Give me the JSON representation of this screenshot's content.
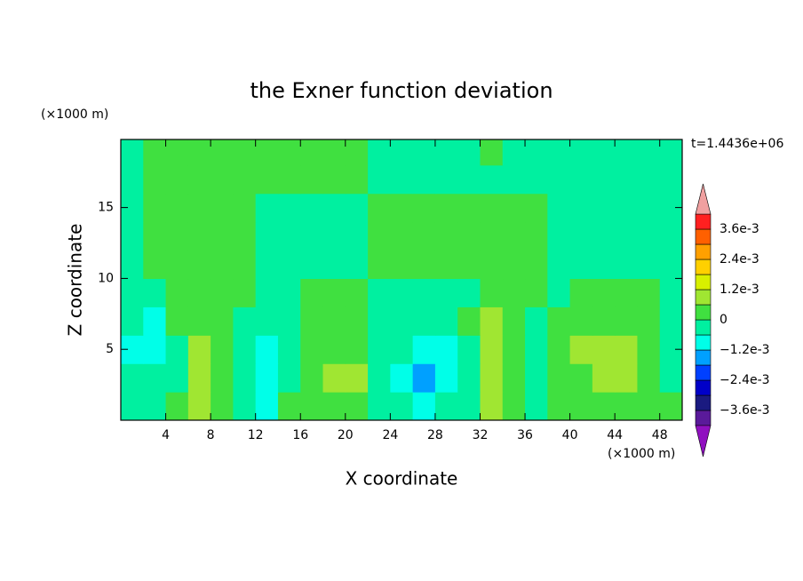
{
  "chart_data": {
    "type": "contour",
    "title": "the Exner function deviation",
    "x_label": "X coordinate",
    "y_label": "Z coordinate",
    "x_unit": "(×1000 m)",
    "y_unit": "(×1000 m)",
    "time_label": "t=1.4436e+06",
    "xlim": [
      0,
      50
    ],
    "ylim": [
      0,
      19.8
    ],
    "xticks": [
      4,
      8,
      12,
      16,
      20,
      24,
      28,
      32,
      36,
      40,
      44,
      48
    ],
    "yticks": [
      5,
      10,
      15
    ],
    "x": [
      1,
      3,
      5,
      7,
      9,
      11,
      13,
      15,
      17,
      19,
      21,
      23,
      25,
      27,
      29,
      31,
      33,
      35,
      37,
      39,
      41,
      43,
      45,
      47,
      49
    ],
    "y": [
      1,
      3,
      5,
      7,
      9,
      11,
      13,
      15,
      17,
      19
    ],
    "z": [
      [
        -0.0003,
        -0.0003,
        0.0003,
        0.0009,
        0.0003,
        -0.0003,
        -0.0009,
        0.0003,
        0.0003,
        0.0003,
        0.0003,
        -0.0003,
        -0.0003,
        -0.0009,
        -0.0003,
        -0.0003,
        0.0009,
        0.0003,
        -0.0003,
        0.0003,
        0.0003,
        0.0003,
        0.0003,
        0.0003,
        0.0003
      ],
      [
        -0.0003,
        -0.0003,
        -0.0003,
        0.0009,
        0.0003,
        -0.0003,
        -0.0009,
        -0.0003,
        0.0003,
        0.0009,
        0.0009,
        -0.0003,
        -0.0009,
        -0.0015,
        -0.0009,
        -0.0003,
        0.0009,
        0.0003,
        -0.0003,
        0.0003,
        0.0003,
        0.0009,
        0.0009,
        0.0003,
        -0.0003
      ],
      [
        -0.0009,
        -0.0009,
        -0.0003,
        0.0009,
        0.0003,
        -0.0003,
        -0.0009,
        -0.0003,
        0.0003,
        0.0003,
        0.0003,
        -0.0003,
        -0.0003,
        -0.0009,
        -0.0009,
        -0.0003,
        0.0009,
        0.0003,
        -0.0003,
        0.0003,
        0.0009,
        0.0009,
        0.0009,
        0.0003,
        -0.0003
      ],
      [
        -0.0003,
        -0.0009,
        0.0003,
        0.0003,
        0.0003,
        -0.0003,
        -0.0003,
        -0.0003,
        0.0003,
        0.0003,
        0.0003,
        -0.0003,
        -0.0003,
        -0.0003,
        -0.0003,
        0.0003,
        0.0009,
        0.0003,
        -0.0003,
        0.0003,
        0.0003,
        0.0003,
        0.0003,
        0.0003,
        -0.0003
      ],
      [
        -0.0003,
        -0.0003,
        0.0003,
        0.0003,
        0.0003,
        0.0003,
        -0.0003,
        -0.0003,
        0.0003,
        0.0003,
        0.0003,
        -0.0003,
        -0.0003,
        -0.0003,
        -0.0003,
        -0.0003,
        0.0003,
        0.0003,
        0.0003,
        -0.0003,
        0.0003,
        0.0003,
        0.0003,
        0.0003,
        -0.0003
      ],
      [
        -0.0003,
        0.0003,
        0.0003,
        0.0003,
        0.0003,
        0.0003,
        -0.0003,
        -0.0003,
        -0.0003,
        -0.0003,
        -0.0003,
        0.0003,
        0.0003,
        0.0003,
        0.0003,
        0.0003,
        0.0003,
        0.0003,
        0.0003,
        -0.0003,
        -0.0003,
        -0.0003,
        -0.0003,
        -0.0003,
        -0.0003
      ],
      [
        -0.0003,
        0.0003,
        0.0003,
        0.0003,
        0.0003,
        0.0003,
        -0.0003,
        -0.0003,
        -0.0003,
        -0.0003,
        -0.0003,
        0.0003,
        0.0003,
        0.0003,
        0.0003,
        0.0003,
        0.0003,
        0.0003,
        0.0003,
        -0.0003,
        -0.0003,
        -0.0003,
        -0.0003,
        -0.0003,
        -0.0003
      ],
      [
        -0.0003,
        0.0003,
        0.0003,
        0.0003,
        0.0003,
        0.0003,
        -0.0003,
        -0.0003,
        -0.0003,
        -0.0003,
        -0.0003,
        0.0003,
        0.0003,
        0.0003,
        0.0003,
        0.0003,
        0.0003,
        0.0003,
        0.0003,
        -0.0003,
        -0.0003,
        -0.0003,
        -0.0003,
        -0.0003,
        -0.0003
      ],
      [
        -0.0003,
        0.0003,
        0.0003,
        0.0003,
        0.0003,
        0.0003,
        0.0003,
        0.0003,
        0.0003,
        0.0003,
        0.0003,
        -0.0003,
        -0.0003,
        -0.0003,
        -0.0003,
        -0.0003,
        -0.0003,
        -0.0003,
        -0.0003,
        -0.0003,
        -0.0003,
        -0.0003,
        -0.0003,
        -0.0003,
        -0.0003
      ],
      [
        -0.0003,
        0.0003,
        0.0003,
        0.0003,
        0.0003,
        0.0003,
        0.0003,
        0.0003,
        0.0003,
        0.0003,
        0.0003,
        -0.0003,
        -0.0003,
        -0.0003,
        -0.0003,
        -0.0003,
        0.0003,
        -0.0003,
        -0.0003,
        -0.0003,
        -0.0003,
        -0.0003,
        -0.0003,
        -0.0003,
        -0.0003
      ]
    ],
    "colorbar": {
      "levels": [
        -0.0042,
        -0.0036,
        -0.003,
        -0.0024,
        -0.0018,
        -0.0012,
        -0.0006,
        0,
        0.0006,
        0.0012,
        0.0018,
        0.0024,
        0.003,
        0.0036,
        0.0042
      ],
      "colors": [
        "#5a1a9a",
        "#1a1a80",
        "#0000c8",
        "#0040ff",
        "#00a0ff",
        "#00ffe8",
        "#00f0a0",
        "#40e040",
        "#a0e632",
        "#d8f000",
        "#ffd000",
        "#ffa000",
        "#ff6000",
        "#ff2020"
      ],
      "under_color": "#9010c0",
      "over_color": "#f0a0a0",
      "ticks": [
        {
          "value": 0.0036,
          "label": "3.6e-3"
        },
        {
          "value": 0.0024,
          "label": "2.4e-3"
        },
        {
          "value": 0.0012,
          "label": "1.2e-3"
        },
        0,
        {
          "value": -0.0012,
          "label": "−1.2e-3"
        },
        {
          "value": -0.0024,
          "label": "−2.4e-3"
        },
        {
          "value": -0.0036,
          "label": "−3.6e-3"
        }
      ]
    }
  }
}
